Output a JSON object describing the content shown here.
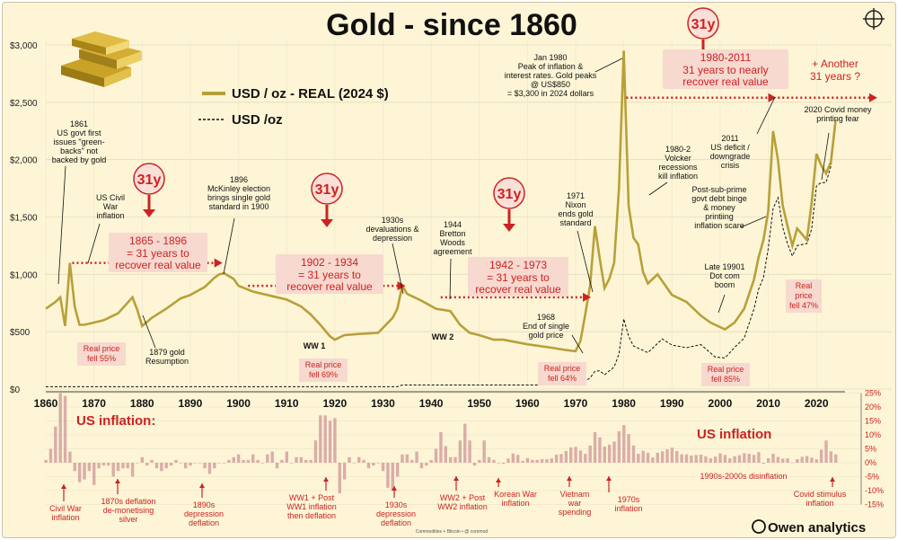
{
  "chart_data": {
    "type": "line",
    "title": "Gold - since 1860",
    "legend": {
      "real": "USD / oz - REAL (2024 $)",
      "nominal": "USD /oz"
    },
    "xlim": [
      1860,
      2025
    ],
    "ylim": [
      0,
      3000
    ],
    "x_ticks": [
      1860,
      1870,
      1880,
      1890,
      1900,
      1910,
      1920,
      1930,
      1940,
      1950,
      1960,
      1970,
      1980,
      1990,
      2000,
      2010,
      2020
    ],
    "y_ticks": [
      {
        "v": 0,
        "t": "$0"
      },
      {
        "v": 500,
        "t": "$500"
      },
      {
        "v": 1000,
        "t": "$1,000"
      },
      {
        "v": 1500,
        "t": "$1,500"
      },
      {
        "v": 2000,
        "t": "$2,000"
      },
      {
        "v": 2500,
        "t": "$2,500"
      },
      {
        "v": 3000,
        "t": "$3,000"
      }
    ],
    "series": [
      {
        "name": "USD / oz - REAL (2024 $)",
        "color": "#b8a038",
        "x": [
          1860,
          1861,
          1862,
          1863,
          1864,
          1865,
          1866,
          1867,
          1868,
          1870,
          1872,
          1875,
          1878,
          1879,
          1880,
          1882,
          1885,
          1888,
          1890,
          1893,
          1895,
          1896,
          1897,
          1899,
          1900,
          1903,
          1906,
          1910,
          1913,
          1915,
          1917,
          1919,
          1920,
          1922,
          1925,
          1929,
          1932,
          1933,
          1934,
          1935,
          1938,
          1941,
          1944,
          1946,
          1948,
          1950,
          1953,
          1955,
          1960,
          1965,
          1968,
          1970,
          1971,
          1972,
          1973,
          1974,
          1975,
          1976,
          1977,
          1978,
          1979,
          1980,
          1981,
          1982,
          1983,
          1984,
          1985,
          1987,
          1990,
          1993,
          1996,
          1998,
          1999,
          2001,
          2003,
          2005,
          2007,
          2008,
          2009,
          2010,
          2011,
          2012,
          2013,
          2014,
          2015,
          2016,
          2018,
          2019,
          2020,
          2021,
          2022,
          2023,
          2024
        ],
        "y": [
          700,
          730,
          760,
          800,
          550,
          1100,
          720,
          560,
          560,
          580,
          600,
          660,
          800,
          690,
          550,
          620,
          700,
          790,
          820,
          890,
          970,
          1000,
          1010,
          960,
          900,
          850,
          820,
          780,
          720,
          650,
          560,
          460,
          430,
          470,
          480,
          490,
          620,
          700,
          900,
          830,
          770,
          700,
          680,
          560,
          490,
          470,
          430,
          430,
          390,
          360,
          340,
          330,
          420,
          650,
          900,
          1420,
          1140,
          880,
          960,
          1100,
          1750,
          2950,
          1600,
          1320,
          1260,
          1020,
          920,
          1000,
          820,
          760,
          640,
          580,
          560,
          520,
          580,
          700,
          950,
          1150,
          1300,
          1550,
          2250,
          2000,
          1600,
          1420,
          1250,
          1400,
          1300,
          1620,
          2050,
          1950,
          1880,
          1980,
          2350
        ]
      },
      {
        "name": "USD /oz",
        "color": "#111111",
        "x": [
          1860,
          1900,
          1930,
          1933,
          1934,
          1967,
          1970,
          1971,
          1973,
          1974,
          1975,
          1976,
          1978,
          1979,
          1980,
          1981,
          1982,
          1985,
          1988,
          1990,
          1993,
          1996,
          1999,
          2001,
          2003,
          2005,
          2007,
          2008,
          2009,
          2010,
          2011,
          2012,
          2013,
          2014,
          2015,
          2016,
          2018,
          2019,
          2020,
          2021,
          2022,
          2023,
          2024
        ],
        "y": [
          20,
          20,
          20,
          20,
          35,
          35,
          36,
          41,
          97,
          154,
          160,
          125,
          193,
          306,
          612,
          460,
          376,
          317,
          437,
          383,
          360,
          388,
          279,
          271,
          363,
          444,
          695,
          872,
          972,
          1225,
          1572,
          1669,
          1411,
          1266,
          1160,
          1251,
          1268,
          1393,
          1770,
          1800,
          1800,
          1943,
          2300
        ]
      }
    ],
    "inflation": {
      "label": "US inflation:",
      "label2": "US inflation",
      "y_ticks": [
        {
          "v": 25,
          "t": "25%"
        },
        {
          "v": 20,
          "t": "20%"
        },
        {
          "v": 15,
          "t": "15%"
        },
        {
          "v": 10,
          "t": "10%"
        },
        {
          "v": 5,
          "t": "5%"
        },
        {
          "v": 0,
          "t": "0%"
        },
        {
          "v": -5,
          "t": "-5%"
        },
        {
          "v": -10,
          "t": "-10%"
        },
        {
          "v": -15,
          "t": "-15%"
        }
      ],
      "ylim": [
        -15,
        25
      ],
      "x": [
        1860,
        1861,
        1862,
        1863,
        1864,
        1865,
        1866,
        1867,
        1868,
        1869,
        1870,
        1871,
        1872,
        1873,
        1874,
        1875,
        1876,
        1877,
        1878,
        1879,
        1880,
        1881,
        1882,
        1883,
        1884,
        1885,
        1886,
        1887,
        1888,
        1889,
        1890,
        1891,
        1892,
        1893,
        1894,
        1895,
        1896,
        1897,
        1898,
        1899,
        1900,
        1901,
        1902,
        1903,
        1904,
        1905,
        1906,
        1907,
        1908,
        1909,
        1910,
        1911,
        1912,
        1913,
        1914,
        1915,
        1916,
        1917,
        1918,
        1919,
        1920,
        1921,
        1922,
        1923,
        1924,
        1925,
        1926,
        1927,
        1928,
        1929,
        1930,
        1931,
        1932,
        1933,
        1934,
        1935,
        1936,
        1937,
        1938,
        1939,
        1940,
        1941,
        1942,
        1943,
        1944,
        1945,
        1946,
        1947,
        1948,
        1949,
        1950,
        1951,
        1952,
        1953,
        1954,
        1955,
        1956,
        1957,
        1958,
        1959,
        1960,
        1961,
        1962,
        1963,
        1964,
        1965,
        1966,
        1967,
        1968,
        1969,
        1970,
        1971,
        1972,
        1973,
        1974,
        1975,
        1976,
        1977,
        1978,
        1979,
        1980,
        1981,
        1982,
        1983,
        1984,
        1985,
        1986,
        1987,
        1988,
        1989,
        1990,
        1991,
        1992,
        1993,
        1994,
        1995,
        1996,
        1997,
        1998,
        1999,
        2000,
        2001,
        2002,
        2003,
        2004,
        2005,
        2006,
        2007,
        2008,
        2009,
        2010,
        2011,
        2012,
        2013,
        2014,
        2015,
        2016,
        2017,
        2018,
        2019,
        2020,
        2021,
        2022,
        2023,
        2024
      ],
      "values": [
        1,
        5,
        13,
        25,
        24,
        4,
        -3,
        -7,
        -6,
        -3,
        -8,
        -2,
        -1,
        -1,
        -5,
        -3,
        -2,
        -2,
        -5,
        0,
        2,
        -1,
        1,
        -2,
        -3,
        -2,
        -1,
        1,
        0,
        -2,
        -1,
        0,
        0,
        -2,
        -4,
        -2,
        0,
        0,
        1,
        2,
        3,
        1,
        1,
        3,
        1,
        0,
        3,
        4,
        -2,
        1,
        4,
        0,
        2,
        2,
        1,
        1,
        8,
        17,
        17,
        15,
        16,
        -11,
        -6,
        2,
        0,
        2,
        1,
        -2,
        -1,
        0,
        -3,
        -9,
        -10,
        -5,
        3,
        3,
        1,
        4,
        -2,
        -1,
        1,
        5,
        11,
        6,
        2,
        2,
        8,
        14,
        8,
        -1,
        1,
        8,
        2,
        1,
        0,
        -0.4,
        1.5,
        3.3,
        2.8,
        0.7,
        1.7,
        1.0,
        1.0,
        1.3,
        1.3,
        1.6,
        2.9,
        3.1,
        4.2,
        5.5,
        5.7,
        4.4,
        3.2,
        6.2,
        11.0,
        9.1,
        5.8,
        6.5,
        7.6,
        11.3,
        13.5,
        10.3,
        6.2,
        3.2,
        4.3,
        3.6,
        1.9,
        3.6,
        4.1,
        4.8,
        5.4,
        4.2,
        3.0,
        3.0,
        2.6,
        2.8,
        2.9,
        2.3,
        1.6,
        2.2,
        3.4,
        2.8,
        1.6,
        2.3,
        2.7,
        3.4,
        3.2,
        2.8,
        3.8,
        -0.4,
        1.6,
        3.2,
        2.1,
        1.5,
        1.6,
        0.1,
        1.3,
        2.1,
        2.4,
        1.8,
        1.2,
        4.7,
        8.0,
        4.1,
        3.0
      ]
    },
    "annotations": {
      "n1861": "1861\nUS govt first\nissues \"green-\nbacks\" not\nbacked by gold",
      "civilwar": "US Civil\nWar\ninflation",
      "n1896": "1896\nMcKinley election\nbrings single gold\nstandard in 1900",
      "n1930s": "1930s\ndevaluations &\ndepression",
      "n1944": "1944\nBretton\nWoods\nagreement",
      "n1971": "1971\nNixon\nends gold\nstandard",
      "n1980": "Jan 1980\nPeak of inflation &\ninterest rates. Gold peaks\n@ US$850\n= $3,300 in 2024 dollars",
      "volcker": "1980-2\nVolcker\nrecessions\nkill inflation",
      "n2011": "2011\nUS deficit /\ndowngrade\ncrisis",
      "covid": "2020 Covid money\nprinting fear",
      "postsub": "Post-sub-prime\ngovt debt binge\n& money\nprintiing\ninflation scare",
      "dotcom": "Late 19901\nDot com\nboom",
      "n1968": "1968\nEnd of single\ngold price",
      "n1879": "1879 gold\nResumption",
      "ww1": "WW 1",
      "ww2": "WW 2",
      "fell55": "Real price\nfell 55%",
      "fell69": "Real price\nfell 69%",
      "fell64": "Real price\nfell 64%",
      "fell85": "Real price\nfell 85%",
      "fell47": "Real\nprice\nfell 47%",
      "badge": "31y",
      "box1": "1865 - 1896",
      "box2": "1902 - 1934",
      "box3": "1942 - 1973",
      "box4": "1980-2011",
      "eq31": "= 31 years to",
      "recover": "recover real value",
      "nearly": "31 years to nearly",
      "another": "+ Another\n31 years ?",
      "inf_civil": "Civil War\ninflation",
      "inf_1870s": "1870s deflation\nde-monetising\nsilver",
      "inf_1890s": "1890s\ndepression\ndeflation",
      "inf_ww1": "WW1 + Post\nWW1 inflation\nthen deflation",
      "inf_1930s": "1930s\ndepression\ndeflation",
      "inf_ww2": "WW2 + Post\nWW2 inflation",
      "inf_korea": "Korean War\ninflation",
      "inf_vietnam": "Vietnam\nwar\nspending",
      "inf_1970s": "1970s\ninflation",
      "inf_1990s": "1990s-2000s disinflation",
      "inf_covid": "Covid stimulus\ninflation"
    },
    "brand": "Owen analytics",
    "source": "Commodities + Bitcoin • @ cornmod"
  }
}
